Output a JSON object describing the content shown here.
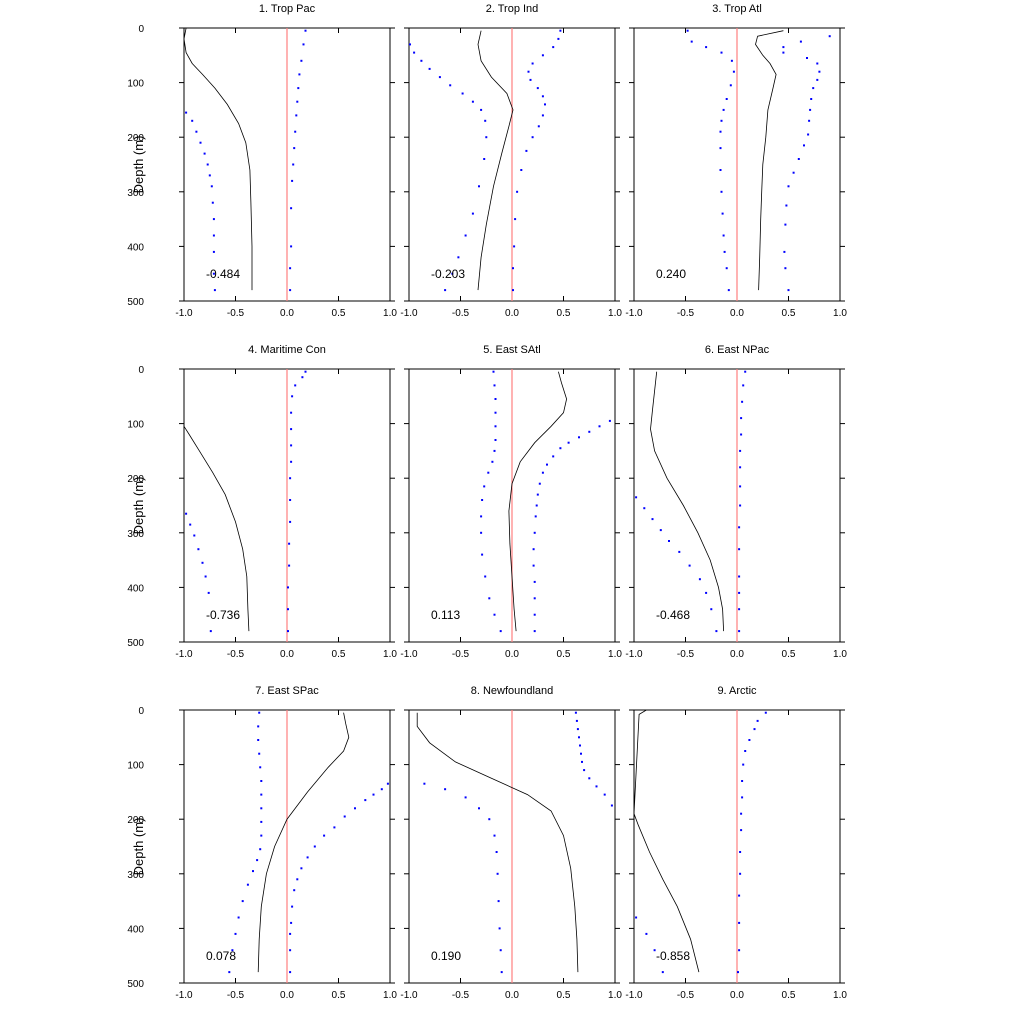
{
  "chart_data": [
    {
      "type": "line",
      "title": "1. Trop Pac",
      "ylabel": "Depth (m)",
      "annotation": "-0.484",
      "xlim": [
        -1.0,
        1.0
      ],
      "ylim": [
        500,
        0
      ],
      "xticks": [
        "-1.0",
        "-0.5",
        "0.0",
        "0.5",
        "1.0"
      ],
      "yticks": [
        "0",
        "100",
        "200",
        "300",
        "400",
        "500"
      ],
      "line": {
        "x": [
          -0.98,
          -1.0,
          -0.98,
          -0.92,
          -0.82,
          -0.7,
          -0.58,
          -0.47,
          -0.4,
          -0.36,
          -0.35,
          -0.34,
          -0.34
        ],
        "y": [
          0,
          20,
          45,
          65,
          85,
          110,
          140,
          175,
          210,
          260,
          320,
          400,
          480
        ]
      },
      "upper": {
        "x": [
          0.18,
          0.16,
          0.14,
          0.12,
          0.11,
          0.1,
          0.09,
          0.08,
          0.07,
          0.06,
          0.05,
          0.04,
          0.04,
          0.03,
          0.03
        ],
        "y": [
          5,
          30,
          60,
          85,
          110,
          135,
          160,
          190,
          220,
          250,
          280,
          330,
          400,
          440,
          480
        ]
      },
      "lower": {
        "x": [
          -0.98,
          -0.92,
          -0.88,
          -0.84,
          -0.8,
          -0.77,
          -0.75,
          -0.73,
          -0.72,
          -0.71,
          -0.71,
          -0.71,
          -0.71,
          -0.7
        ],
        "y": [
          155,
          170,
          190,
          210,
          230,
          250,
          270,
          290,
          320,
          350,
          380,
          410,
          450,
          480
        ]
      }
    },
    {
      "type": "line",
      "title": "2. Trop Ind",
      "ylabel": "",
      "annotation": "-0.203",
      "xlim": [
        -1.0,
        1.0
      ],
      "ylim": [
        500,
        0
      ],
      "xticks": [
        "-1.0",
        "-0.5",
        "0.0",
        "0.5",
        "1.0"
      ],
      "yticks": [],
      "line": {
        "x": [
          -0.3,
          -0.33,
          -0.3,
          -0.2,
          -0.05,
          0.01,
          -0.03,
          -0.1,
          -0.18,
          -0.25,
          -0.3,
          -0.33
        ],
        "y": [
          5,
          30,
          60,
          90,
          120,
          150,
          180,
          230,
          290,
          360,
          420,
          480
        ]
      },
      "upper": {
        "x": [
          0.47,
          0.45,
          0.4,
          0.3,
          0.2,
          0.16,
          0.18,
          0.25,
          0.3,
          0.32,
          0.3,
          0.26,
          0.2,
          0.14,
          0.09,
          0.05,
          0.03,
          0.02,
          0.01,
          0.01
        ],
        "y": [
          5,
          20,
          35,
          50,
          65,
          80,
          95,
          110,
          125,
          140,
          160,
          180,
          200,
          225,
          260,
          300,
          350,
          400,
          440,
          480
        ]
      },
      "lower": {
        "x": [
          -0.99,
          -0.95,
          -0.88,
          -0.8,
          -0.7,
          -0.6,
          -0.48,
          -0.38,
          -0.3,
          -0.26,
          -0.25,
          -0.27,
          -0.32,
          -0.38,
          -0.45,
          -0.52,
          -0.58,
          -0.65
        ],
        "y": [
          30,
          45,
          60,
          75,
          90,
          105,
          120,
          135,
          150,
          170,
          200,
          240,
          290,
          340,
          380,
          420,
          450,
          480
        ]
      }
    },
    {
      "type": "line",
      "title": "3. Trop Atl",
      "ylabel": "",
      "annotation": "0.240",
      "xlim": [
        -1.0,
        1.0
      ],
      "ylim": [
        500,
        0
      ],
      "xticks": [
        "-1.0",
        "-0.5",
        "0.0",
        "0.5",
        "1.0"
      ],
      "yticks": [],
      "line": {
        "x": [
          0.45,
          0.2,
          0.18,
          0.25,
          0.32,
          0.38,
          0.35,
          0.3,
          0.28,
          0.25,
          0.24,
          0.23,
          0.22,
          0.21
        ],
        "y": [
          5,
          15,
          30,
          50,
          65,
          85,
          110,
          150,
          200,
          250,
          300,
          350,
          420,
          480
        ]
      },
      "upper": {
        "x": [
          0.9,
          0.62,
          0.45,
          0.45,
          0.68,
          0.78,
          0.8,
          0.78,
          0.74,
          0.72,
          0.71,
          0.7,
          0.69,
          0.65,
          0.6,
          0.55,
          0.5,
          0.48,
          0.47,
          0.46,
          0.47,
          0.5
        ],
        "y": [
          15,
          25,
          35,
          45,
          55,
          65,
          80,
          95,
          110,
          130,
          150,
          170,
          195,
          215,
          240,
          265,
          290,
          325,
          360,
          410,
          440,
          480
        ]
      },
      "lower": {
        "x": [
          -0.48,
          -0.44,
          -0.3,
          -0.15,
          -0.05,
          -0.03,
          -0.06,
          -0.1,
          -0.13,
          -0.15,
          -0.16,
          -0.16,
          -0.16,
          -0.15,
          -0.14,
          -0.13,
          -0.12,
          -0.1,
          -0.08
        ],
        "y": [
          5,
          25,
          35,
          45,
          60,
          80,
          105,
          130,
          150,
          170,
          190,
          220,
          260,
          300,
          340,
          380,
          410,
          440,
          480
        ]
      }
    },
    {
      "type": "line",
      "title": "4. Maritime Con",
      "ylabel": "Depth (m)",
      "annotation": "-0.736",
      "xlim": [
        -1.0,
        1.0
      ],
      "ylim": [
        500,
        0
      ],
      "xticks": [
        "-1.0",
        "-0.5",
        "0.0",
        "0.5",
        "1.0"
      ],
      "yticks": [
        "0",
        "100",
        "200",
        "300",
        "400",
        "500"
      ],
      "line": {
        "x": [
          -1.0,
          -0.95,
          -0.85,
          -0.72,
          -0.6,
          -0.5,
          -0.43,
          -0.39,
          -0.38,
          -0.37
        ],
        "y": [
          105,
          120,
          150,
          190,
          230,
          280,
          330,
          380,
          440,
          480
        ]
      },
      "upper": {
        "x": [
          0.18,
          0.15,
          0.08,
          0.05,
          0.04,
          0.04,
          0.04,
          0.04,
          0.03,
          0.03,
          0.03,
          0.02,
          0.02,
          0.01,
          0.01,
          0.01
        ],
        "y": [
          5,
          15,
          30,
          50,
          80,
          110,
          140,
          170,
          200,
          240,
          280,
          320,
          360,
          400,
          440,
          480
        ]
      },
      "lower": {
        "x": [
          -0.98,
          -0.94,
          -0.9,
          -0.86,
          -0.82,
          -0.79,
          -0.76,
          -0.74
        ],
        "y": [
          265,
          285,
          305,
          330,
          355,
          380,
          410,
          480
        ]
      }
    },
    {
      "type": "line",
      "title": "5. East SAtl",
      "ylabel": "",
      "annotation": "0.113",
      "xlim": [
        -1.0,
        1.0
      ],
      "ylim": [
        500,
        0
      ],
      "xticks": [
        "-1.0",
        "-0.5",
        "0.0",
        "0.5",
        "1.0"
      ],
      "yticks": [],
      "line": {
        "x": [
          0.45,
          0.48,
          0.53,
          0.5,
          0.38,
          0.22,
          0.08,
          0.0,
          -0.03,
          -0.02,
          0.0,
          0.02,
          0.04
        ],
        "y": [
          5,
          25,
          55,
          80,
          105,
          135,
          170,
          210,
          260,
          320,
          380,
          440,
          480
        ]
      },
      "upper": {
        "x": [
          0.95,
          0.85,
          0.75,
          0.65,
          0.55,
          0.47,
          0.4,
          0.34,
          0.3,
          0.27,
          0.25,
          0.24,
          0.23,
          0.22,
          0.21,
          0.21,
          0.22,
          0.22,
          0.22,
          0.22
        ],
        "y": [
          95,
          105,
          115,
          125,
          135,
          145,
          160,
          175,
          190,
          210,
          230,
          250,
          270,
          300,
          330,
          360,
          390,
          420,
          450,
          480
        ]
      },
      "lower": {
        "x": [
          -0.18,
          -0.17,
          -0.16,
          -0.16,
          -0.16,
          -0.16,
          -0.17,
          -0.19,
          -0.23,
          -0.27,
          -0.29,
          -0.3,
          -0.3,
          -0.29,
          -0.26,
          -0.22,
          -0.17,
          -0.11
        ],
        "y": [
          5,
          30,
          55,
          80,
          105,
          130,
          150,
          170,
          190,
          215,
          240,
          270,
          300,
          340,
          380,
          420,
          450,
          480
        ]
      }
    },
    {
      "type": "line",
      "title": "6. East NPac",
      "ylabel": "",
      "annotation": "-0.468",
      "xlim": [
        -1.0,
        1.0
      ],
      "ylim": [
        500,
        0
      ],
      "xticks": [
        "-1.0",
        "-0.5",
        "0.0",
        "0.5",
        "1.0"
      ],
      "yticks": [],
      "line": {
        "x": [
          -0.78,
          -0.8,
          -0.82,
          -0.84,
          -0.8,
          -0.68,
          -0.52,
          -0.38,
          -0.26,
          -0.18,
          -0.14,
          -0.13
        ],
        "y": [
          5,
          40,
          75,
          110,
          150,
          200,
          250,
          300,
          350,
          400,
          440,
          480
        ]
      },
      "upper": {
        "x": [
          0.08,
          0.06,
          0.05,
          0.04,
          0.04,
          0.03,
          0.03,
          0.03,
          0.03,
          0.02,
          0.02,
          0.02,
          0.02,
          0.02,
          0.02
        ],
        "y": [
          5,
          30,
          60,
          90,
          120,
          150,
          180,
          215,
          250,
          290,
          330,
          380,
          410,
          440,
          480
        ]
      },
      "lower": {
        "x": [
          -0.98,
          -0.9,
          -0.82,
          -0.74,
          -0.66,
          -0.56,
          -0.46,
          -0.36,
          -0.3,
          -0.25,
          -0.2
        ],
        "y": [
          235,
          255,
          275,
          295,
          315,
          335,
          360,
          385,
          410,
          440,
          480
        ]
      }
    },
    {
      "type": "line",
      "title": "7. East SPac",
      "ylabel": "Depth (m)",
      "annotation": "0.078",
      "xlim": [
        -1.0,
        1.0
      ],
      "ylim": [
        500,
        0
      ],
      "xticks": [
        "-1.0",
        "-0.5",
        "0.0",
        "0.5",
        "1.0"
      ],
      "yticks": [
        "0",
        "100",
        "200",
        "300",
        "400",
        "500"
      ],
      "line": {
        "x": [
          0.55,
          0.57,
          0.6,
          0.55,
          0.4,
          0.2,
          0.0,
          -0.12,
          -0.2,
          -0.25,
          -0.27,
          -0.28
        ],
        "y": [
          5,
          25,
          50,
          75,
          105,
          150,
          200,
          250,
          300,
          360,
          420,
          480
        ]
      },
      "upper": {
        "x": [
          0.98,
          0.92,
          0.84,
          0.76,
          0.66,
          0.56,
          0.46,
          0.36,
          0.27,
          0.2,
          0.14,
          0.1,
          0.07,
          0.05,
          0.04,
          0.03,
          0.03,
          0.03
        ],
        "y": [
          135,
          145,
          155,
          165,
          180,
          195,
          215,
          230,
          250,
          270,
          290,
          310,
          330,
          360,
          390,
          410,
          440,
          480
        ]
      },
      "lower": {
        "x": [
          -0.27,
          -0.28,
          -0.28,
          -0.27,
          -0.26,
          -0.25,
          -0.25,
          -0.25,
          -0.25,
          -0.25,
          -0.26,
          -0.29,
          -0.33,
          -0.38,
          -0.43,
          -0.47,
          -0.5,
          -0.53,
          -0.56
        ],
        "y": [
          5,
          30,
          55,
          80,
          105,
          130,
          155,
          180,
          205,
          230,
          255,
          275,
          295,
          320,
          350,
          380,
          410,
          440,
          480
        ]
      }
    },
    {
      "type": "line",
      "title": "8. Newfoundland",
      "ylabel": "",
      "annotation": "0.190",
      "xlim": [
        -1.0,
        1.0
      ],
      "ylim": [
        500,
        0
      ],
      "xticks": [
        "-1.0",
        "-0.5",
        "0.0",
        "0.5",
        "1.0"
      ],
      "yticks": [],
      "line": {
        "x": [
          -0.92,
          -0.92,
          -0.8,
          -0.55,
          -0.2,
          0.15,
          0.38,
          0.5,
          0.57,
          0.61,
          0.63,
          0.64
        ],
        "y": [
          5,
          30,
          60,
          95,
          125,
          155,
          185,
          230,
          290,
          360,
          420,
          480
        ]
      },
      "upper": {
        "x": [
          0.62,
          0.63,
          0.64,
          0.65,
          0.66,
          0.67,
          0.68,
          0.7,
          0.75,
          0.82,
          0.9,
          0.97
        ],
        "y": [
          5,
          20,
          35,
          50,
          65,
          80,
          95,
          110,
          125,
          140,
          155,
          175
        ]
      },
      "lower": {
        "x": [
          -0.85,
          -0.65,
          -0.45,
          -0.32,
          -0.22,
          -0.17,
          -0.15,
          -0.14,
          -0.13,
          -0.12,
          -0.11,
          -0.1
        ],
        "y": [
          135,
          145,
          160,
          180,
          200,
          230,
          260,
          300,
          350,
          400,
          440,
          480
        ]
      }
    },
    {
      "type": "line",
      "title": "9. Arctic",
      "ylabel": "",
      "annotation": "-0.858",
      "xlim": [
        -1.0,
        1.0
      ],
      "ylim": [
        500,
        0
      ],
      "xticks": [
        "-1.0",
        "-0.5",
        "0.0",
        "0.5",
        "1.0"
      ],
      "yticks": [],
      "line": {
        "x": [
          -0.88,
          -0.95,
          -1.0,
          -0.96,
          -0.85,
          -0.72,
          -0.58,
          -0.45,
          -0.37
        ],
        "y": [
          0,
          8,
          190,
          210,
          260,
          310,
          360,
          420,
          480
        ]
      },
      "upper": {
        "x": [
          0.28,
          0.2,
          0.17,
          0.12,
          0.08,
          0.06,
          0.05,
          0.05,
          0.04,
          0.04,
          0.03,
          0.03,
          0.02,
          0.02,
          0.02,
          0.01
        ],
        "y": [
          5,
          20,
          35,
          55,
          75,
          100,
          130,
          160,
          190,
          220,
          260,
          300,
          340,
          390,
          440,
          480
        ]
      },
      "lower": {
        "x": [
          -0.98,
          -0.88,
          -0.8,
          -0.72
        ],
        "y": [
          380,
          410,
          440,
          480
        ]
      }
    }
  ]
}
